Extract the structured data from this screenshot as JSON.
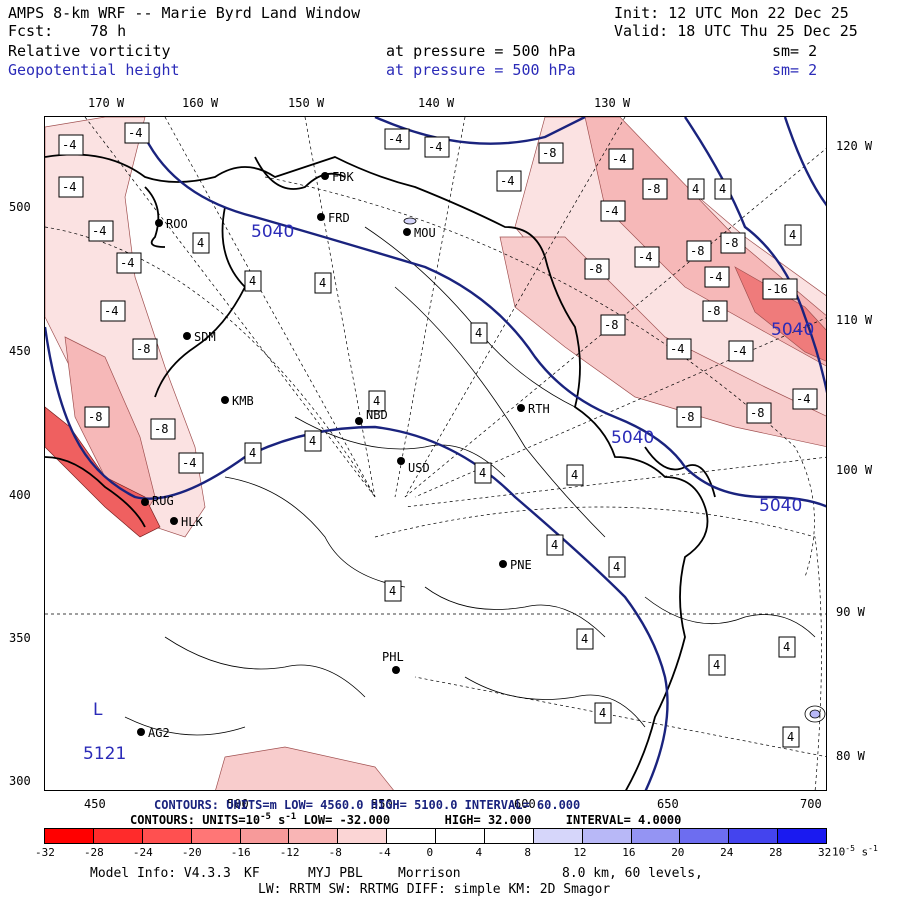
{
  "header": {
    "title": "AMPS 8-km WRF -- Marie Byrd Land Window",
    "fcst_label": "Fcst:",
    "fcst_value": "78 h",
    "init": "Init: 12 UTC Mon 22 Dec 25",
    "valid": "Valid: 18 UTC Thu 25 Dec 25",
    "field1": {
      "name": "Relative vorticity",
      "level": "at pressure =  500 hPa",
      "sm": "sm= 2"
    },
    "field2": {
      "name": "Geopotential height",
      "level": "at pressure =  500 hPa",
      "sm": "sm= 2"
    }
  },
  "colors": {
    "contour_blue": "#1a237e",
    "coast": "#000000",
    "neg_strong": "#ff0000",
    "neg_light": "#fbd5d5",
    "pos": "#0000ff"
  },
  "axes": {
    "top_lon": [
      "170 W",
      "160 W",
      "150 W",
      "140 W",
      "130 W"
    ],
    "right_lon": [
      "120 W",
      "110 W",
      "100 W",
      "90 W",
      "80 W"
    ],
    "left_grid": [
      "500",
      "450",
      "400",
      "350",
      "300"
    ],
    "bottom_grid": [
      "450",
      "500",
      "550",
      "600",
      "650",
      "700"
    ]
  },
  "stations": [
    {
      "name": "FDK"
    },
    {
      "name": "FRD"
    },
    {
      "name": "ROO"
    },
    {
      "name": "MOU"
    },
    {
      "name": "SDM"
    },
    {
      "name": "KMB"
    },
    {
      "name": "NBD"
    },
    {
      "name": "RTH"
    },
    {
      "name": "USD"
    },
    {
      "name": "RUG"
    },
    {
      "name": "HLK"
    },
    {
      "name": "PNE"
    },
    {
      "name": "PHL"
    },
    {
      "name": "AG2"
    }
  ],
  "height_labels": [
    "5040",
    "5040",
    "5040",
    "5040"
  ],
  "low_marker": {
    "letter": "L",
    "value": "5121"
  },
  "vort_labels": [
    "-4",
    "-4",
    "-4",
    "-4",
    "-4",
    "-4",
    "-4",
    "-4",
    "-4",
    "-4",
    "-4",
    "-4",
    "-4",
    "-4",
    "-4",
    "-4",
    "-4",
    "-8",
    "-8",
    "-8",
    "-8",
    "-8",
    "-8",
    "-8",
    "-8",
    "-8",
    "-8",
    "-8",
    "-8",
    "-16",
    "4",
    "4",
    "4",
    "4",
    "4",
    "4",
    "4",
    "4",
    "4",
    "4",
    "4",
    "4",
    "4",
    "4",
    "4",
    "4",
    "4",
    "4",
    "4",
    "4"
  ],
  "contour_info_height": {
    "text": "CONTOURS:  UNITS=m   LOW=  4560.0     HIGH=  5100.0     INTERVAL=  60.000"
  },
  "contour_info_vort": {
    "label": "CONTOURS:",
    "units": "UNITS=10",
    "units_exp": "-5",
    "units_tail": " s",
    "units_tail_exp": "-1",
    "low": "LOW= -32.000",
    "high": "HIGH=  32.000",
    "interval": "INTERVAL=   4.0000"
  },
  "colorbar": {
    "ticks": [
      "-32",
      "-28",
      "-24",
      "-20",
      "-16",
      "-12",
      "-8",
      "-4",
      "0",
      "4",
      "8",
      "12",
      "16",
      "20",
      "24",
      "28",
      "32"
    ],
    "units": "10",
    "units_exp": "-5",
    "units_tail": " s",
    "units_tail_exp": "-1",
    "colors": [
      "#ff0000",
      "#ff2b2b",
      "#ff5050",
      "#ff7676",
      "#f79a9a",
      "#f9b5b5",
      "#fbd5d5",
      "#ffffff",
      "#ffffff",
      "#ffffff",
      "#d6d6fa",
      "#b8b8f7",
      "#9494f3",
      "#6d6df0",
      "#4444ee",
      "#1a1af0"
    ]
  },
  "footer": {
    "line1_a": "Model Info: V4.3.3",
    "line1_b": "KF",
    "line1_c": "MYJ PBL",
    "line1_d": "Morrison",
    "line1_e": "8.0 km,  60 levels,",
    "line2": "LW: RRTM SW: RRTMG   DIFF: simple KM: 2D Smagor"
  }
}
